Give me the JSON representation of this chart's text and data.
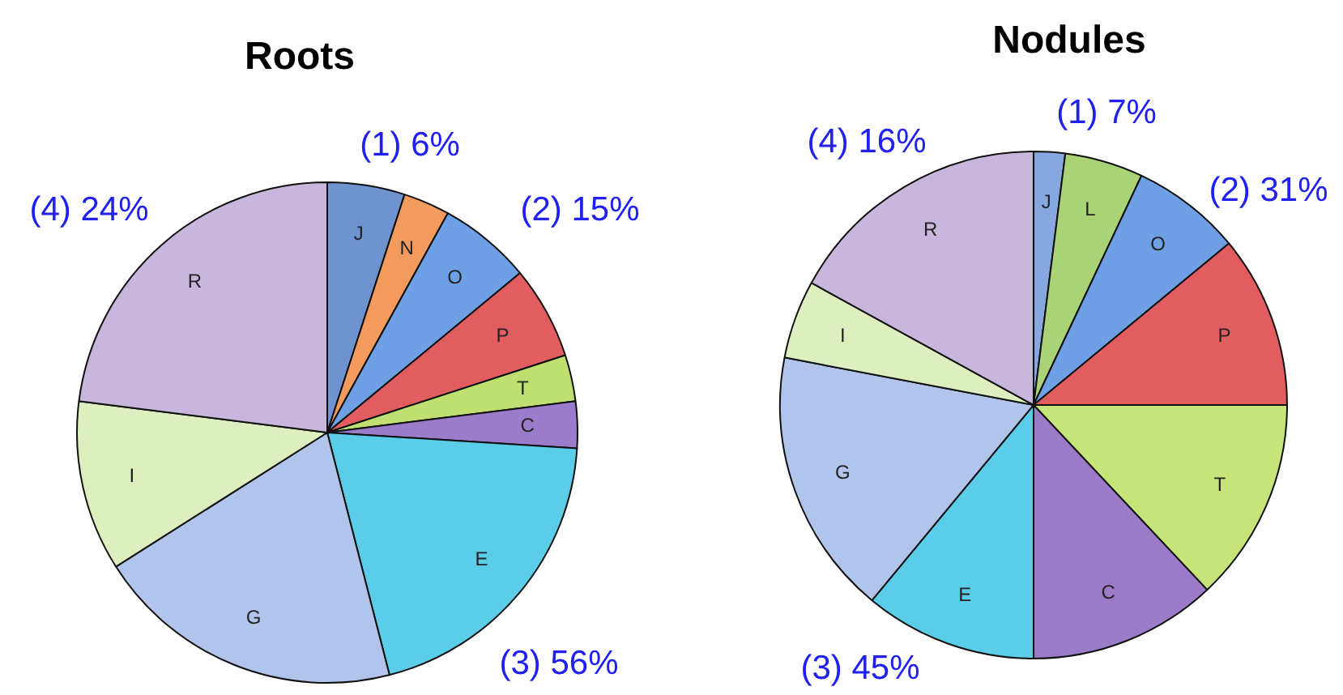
{
  "chart_data": [
    {
      "type": "pie",
      "title": "Roots",
      "categories": [
        "J",
        "N",
        "O",
        "P",
        "T",
        "C",
        "E",
        "G",
        "I",
        "R"
      ],
      "values": [
        5,
        3,
        6,
        6,
        3,
        3,
        20,
        20,
        11,
        23
      ],
      "colors": [
        "#6f93cf",
        "#f39a5e",
        "#6fa0e6",
        "#e25d5f",
        "#bfe070",
        "#9a7cca",
        "#5ccde8",
        "#b1c4ec",
        "#ddefbf",
        "#c8b6dc"
      ],
      "annotations": [
        "(1) 6%",
        "(2) 15%",
        "(3) 56%",
        "(4) 24%"
      ]
    },
    {
      "type": "pie",
      "title": "Nodules",
      "categories": [
        "J",
        "L",
        "O",
        "P",
        "T",
        "C",
        "E",
        "G",
        "I",
        "R"
      ],
      "values": [
        2,
        5,
        7,
        11,
        13,
        12,
        11,
        17,
        5,
        17
      ],
      "colors": [
        "#86a8de",
        "#aad276",
        "#6fa0e6",
        "#e25d5f",
        "#c6e47a",
        "#9c7cc8",
        "#5ccde8",
        "#b1c4ec",
        "#ddefbf",
        "#c8b6dc"
      ],
      "annotations": [
        "(1) 7%",
        "(2) 31%",
        "(3) 45%",
        "(4) 16%"
      ]
    }
  ]
}
